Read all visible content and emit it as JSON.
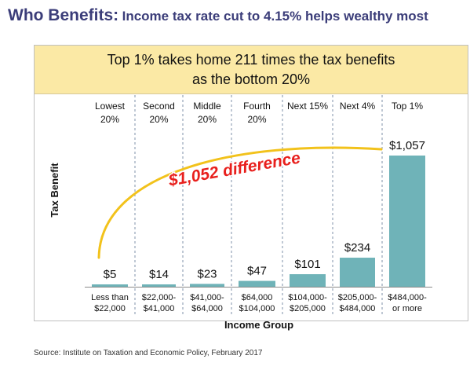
{
  "headline": {
    "lead": "Who Benefits:",
    "rest": "Income tax rate cut to 4.15% helps wealthy most"
  },
  "banner": {
    "line1": "Top 1% takes home 211 times the tax benefits",
    "line2": "as the bottom 20%"
  },
  "annotation": "$1,052 difference",
  "source": "Source: Institute on Taxation and Economic Policy, February 2017",
  "colors": {
    "bar": "#6fb3b8",
    "headline": "#3b3d79",
    "annotation": "#e8201d",
    "arc": "#f2c21b",
    "banner": "#fbe9a5"
  },
  "chart_data": {
    "type": "bar",
    "title": "",
    "xlabel": "Income Group",
    "ylabel": "Tax Benefit",
    "categories": [
      "Lowest 20%",
      "Second 20%",
      "Middle 20%",
      "Fourth 20%",
      "Next 15%",
      "Next 4%",
      "Top 1%"
    ],
    "group_labels": [
      [
        "Lowest",
        "20%"
      ],
      [
        "Second",
        "20%"
      ],
      [
        "Middle",
        "20%"
      ],
      [
        "Fourth",
        "20%"
      ],
      [
        "Next 15%"
      ],
      [
        "Next 4%"
      ],
      [
        "Top 1%"
      ]
    ],
    "income_ranges": [
      [
        "Less than",
        "$22,000"
      ],
      [
        "$22,000-",
        "$41,000"
      ],
      [
        "$41,000-",
        "$64,000"
      ],
      [
        "$64,000",
        "$104,000"
      ],
      [
        "$104,000-",
        "$205,000"
      ],
      [
        "$205,000-",
        "$484,000"
      ],
      [
        "$484,000-",
        "or more"
      ]
    ],
    "values": [
      5,
      14,
      23,
      47,
      101,
      234,
      1057
    ],
    "value_labels": [
      "$5",
      "$14",
      "$23",
      "$47",
      "$101",
      "$234",
      "$1,057"
    ],
    "ylim": [
      0,
      1057
    ],
    "grid": false,
    "legend": "none"
  }
}
